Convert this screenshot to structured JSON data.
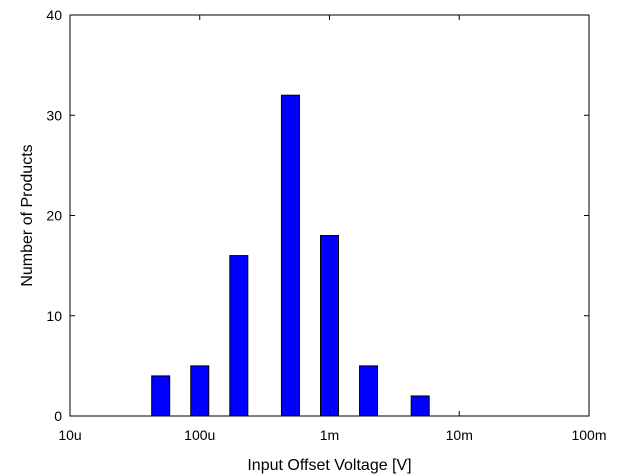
{
  "chart_data": {
    "type": "bar",
    "title": "",
    "xlabel": "Input Offset Voltage [V]",
    "ylabel": "Number of Products",
    "x_scale": "log",
    "xlim": [
      1e-05,
      0.1
    ],
    "ylim": [
      0,
      40
    ],
    "xticks": [
      {
        "value": 1e-05,
        "label": "10u"
      },
      {
        "value": 0.0001,
        "label": "100u"
      },
      {
        "value": 0.001,
        "label": "1m"
      },
      {
        "value": 0.01,
        "label": "10m"
      },
      {
        "value": 0.1,
        "label": "100m"
      }
    ],
    "yticks": [
      {
        "value": 0,
        "label": "0"
      },
      {
        "value": 10,
        "label": "10"
      },
      {
        "value": 20,
        "label": "20"
      },
      {
        "value": 30,
        "label": "30"
      },
      {
        "value": 40,
        "label": "40"
      }
    ],
    "bars": [
      {
        "x": 5e-05,
        "value": 4
      },
      {
        "x": 0.0001,
        "value": 5
      },
      {
        "x": 0.0002,
        "value": 16
      },
      {
        "x": 0.0005,
        "value": 32
      },
      {
        "x": 0.001,
        "value": 18
      },
      {
        "x": 0.002,
        "value": 5
      },
      {
        "x": 0.005,
        "value": 2
      }
    ],
    "bar_color": "#0000ff",
    "grid": false,
    "box": true
  }
}
